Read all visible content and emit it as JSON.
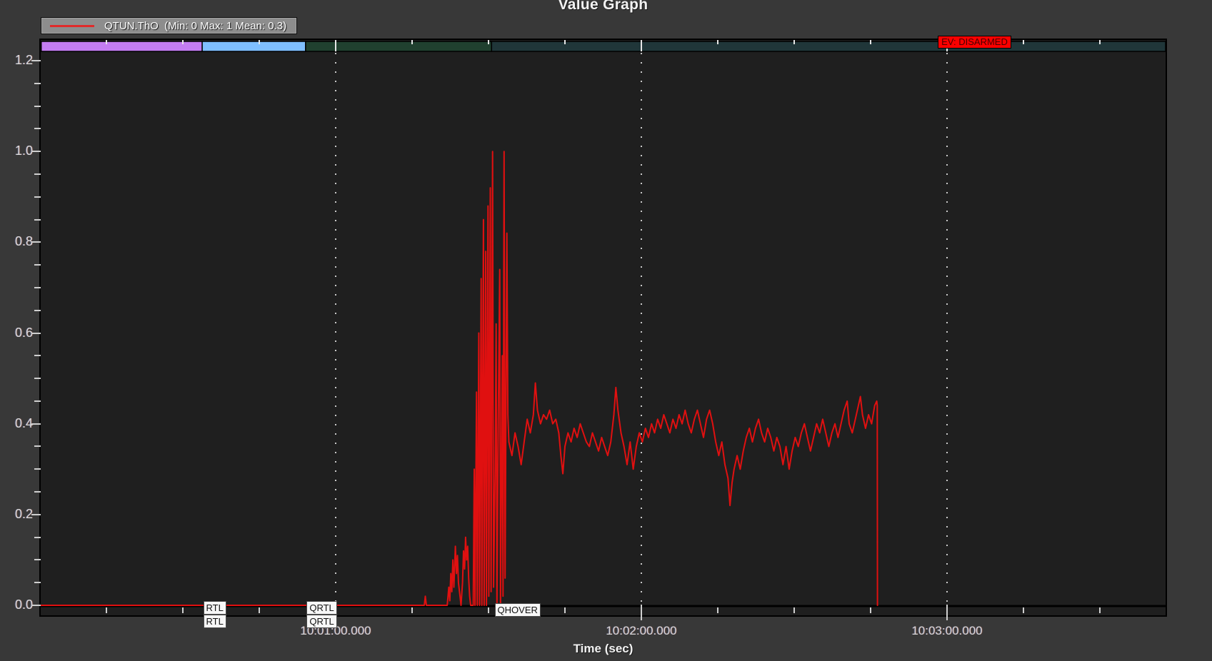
{
  "accent_colors": {
    "page_background": "#383838",
    "plot_background": "#1f1f1f",
    "trace_red": "#e01010",
    "grid_dot": "#c8c8c8",
    "tick": "#cfcfcf"
  },
  "chart_data": {
    "type": "line",
    "title": "Value Graph",
    "xlabel": "Time (sec)",
    "ylim": [
      -0.022,
      1.246
    ],
    "xlim_sec": [
      2.1,
      222.9
    ],
    "grid": "dotted vertical lines at major x ticks",
    "legend_position": "top-left",
    "yticks": {
      "major": [
        0.0,
        0.2,
        0.4,
        0.6,
        0.8,
        1.0,
        1.2
      ],
      "labels": [
        "0.0",
        "0.2",
        "0.4",
        "0.6",
        "0.8",
        "1.0",
        "1.2"
      ],
      "minor_step": 0.05
    },
    "xticks": {
      "major": [
        {
          "sec": 60,
          "label": "10:01:00.000"
        },
        {
          "sec": 120,
          "label": "10:02:00.000"
        },
        {
          "sec": 180,
          "label": "10:03:00.000"
        }
      ],
      "minor_step_sec": 15
    },
    "legend": {
      "label": "QTUN.ThO  (Min: 0 Max: 1 Mean: 0.3)",
      "color": "#e01010"
    },
    "flight_mode_spans": [
      {
        "mode": "",
        "color": "#c47df2",
        "start_sec": 2.2,
        "end_sec": 33.8
      },
      {
        "mode": "RTL",
        "color": "#7fbfff",
        "start_sec": 33.8,
        "end_sec": 54.1
      },
      {
        "mode": "QRTL",
        "color": "#20402f",
        "start_sec": 54.1,
        "end_sec": 90.6
      },
      {
        "mode": "QHOVER",
        "color": "#203639",
        "start_sec": 90.6,
        "end_sec": 222.9
      }
    ],
    "mode_change_labels": [
      {
        "label": "RTL",
        "sec": 34.0,
        "stacked": 2
      },
      {
        "label": "QRTL",
        "sec": 54.3,
        "stacked": 2
      },
      {
        "label": "QHOVER",
        "sec": 91.2,
        "stacked": 1
      }
    ],
    "event_labels": [
      {
        "label": "EV: DISARMED",
        "sec": 178.2,
        "bg": "#fb0000",
        "fg": "#4a0000"
      }
    ],
    "series": [
      {
        "name": "QTUN.ThO",
        "color": "#e01010",
        "min": 0,
        "max": 1,
        "mean": 0.3,
        "points": [
          [
            2.1,
            0
          ],
          [
            40,
            0
          ],
          [
            60,
            0
          ],
          [
            74,
            0
          ],
          [
            77.4,
            0
          ],
          [
            77.6,
            0.02
          ],
          [
            77.8,
            0
          ],
          [
            81.9,
            0
          ],
          [
            82.2,
            0.04
          ],
          [
            82.4,
            0.01
          ],
          [
            82.6,
            0.07
          ],
          [
            82.8,
            0.03
          ],
          [
            83.0,
            0.1
          ],
          [
            83.2,
            0.04
          ],
          [
            83.5,
            0.13
          ],
          [
            83.7,
            0.07
          ],
          [
            83.9,
            0.11
          ],
          [
            84.1,
            0.05
          ],
          [
            84.4,
            0.02
          ],
          [
            84.6,
            0
          ],
          [
            84.9,
            0.05
          ],
          [
            85.1,
            0.12
          ],
          [
            85.3,
            0.08
          ],
          [
            85.5,
            0.15
          ],
          [
            85.7,
            0.1
          ],
          [
            85.9,
            0.13
          ],
          [
            86.1,
            0.06
          ],
          [
            86.3,
            0.02
          ],
          [
            86.5,
            0
          ],
          [
            87.0,
            0
          ],
          [
            87.2,
            0.3
          ],
          [
            87.35,
            0
          ],
          [
            87.65,
            0.47
          ],
          [
            87.8,
            0
          ],
          [
            88.1,
            0.6
          ],
          [
            88.25,
            0
          ],
          [
            88.55,
            0.72
          ],
          [
            88.7,
            0
          ],
          [
            89.0,
            0.85
          ],
          [
            89.15,
            0
          ],
          [
            89.45,
            0.78
          ],
          [
            89.6,
            0
          ],
          [
            89.9,
            0.88
          ],
          [
            90.05,
            0.02
          ],
          [
            90.35,
            0.92
          ],
          [
            90.5,
            0.03
          ],
          [
            90.8,
            1.0
          ],
          [
            91.0,
            0.04
          ],
          [
            91.3,
            0.3
          ],
          [
            91.5,
            0.62
          ],
          [
            91.65,
            0
          ],
          [
            91.95,
            0.45
          ],
          [
            92.2,
            0.74
          ],
          [
            92.35,
            0
          ],
          [
            92.7,
            0.55
          ],
          [
            92.85,
            0.02
          ],
          [
            93.05,
            1.0
          ],
          [
            93.25,
            0.06
          ],
          [
            93.6,
            0.82
          ],
          [
            93.8,
            0.42
          ],
          [
            94.0,
            0.36
          ],
          [
            94.6,
            0.33
          ],
          [
            95.2,
            0.38
          ],
          [
            95.8,
            0.35
          ],
          [
            96.4,
            0.31
          ],
          [
            97.0,
            0.36
          ],
          [
            97.6,
            0.41
          ],
          [
            98.2,
            0.38
          ],
          [
            98.8,
            0.42
          ],
          [
            99.2,
            0.49
          ],
          [
            99.6,
            0.43
          ],
          [
            100.2,
            0.4
          ],
          [
            100.8,
            0.42
          ],
          [
            101.4,
            0.41
          ],
          [
            102.0,
            0.43
          ],
          [
            102.6,
            0.4
          ],
          [
            103.2,
            0.41
          ],
          [
            103.8,
            0.38
          ],
          [
            104.2,
            0.33
          ],
          [
            104.6,
            0.29
          ],
          [
            105.0,
            0.35
          ],
          [
            105.6,
            0.38
          ],
          [
            106.2,
            0.36
          ],
          [
            106.8,
            0.39
          ],
          [
            107.4,
            0.37
          ],
          [
            108.0,
            0.4
          ],
          [
            108.6,
            0.38
          ],
          [
            109.2,
            0.36
          ],
          [
            109.8,
            0.35
          ],
          [
            110.4,
            0.38
          ],
          [
            111.0,
            0.36
          ],
          [
            111.6,
            0.34
          ],
          [
            112.2,
            0.37
          ],
          [
            112.8,
            0.35
          ],
          [
            113.4,
            0.33
          ],
          [
            114.0,
            0.36
          ],
          [
            114.6,
            0.42
          ],
          [
            115.0,
            0.48
          ],
          [
            115.4,
            0.43
          ],
          [
            116.0,
            0.38
          ],
          [
            116.6,
            0.35
          ],
          [
            117.2,
            0.31
          ],
          [
            117.8,
            0.36
          ],
          [
            118.4,
            0.3
          ],
          [
            119.0,
            0.35
          ],
          [
            119.6,
            0.38
          ],
          [
            120.2,
            0.36
          ],
          [
            120.8,
            0.39
          ],
          [
            121.4,
            0.37
          ],
          [
            122.0,
            0.4
          ],
          [
            122.6,
            0.38
          ],
          [
            123.2,
            0.41
          ],
          [
            123.8,
            0.39
          ],
          [
            124.4,
            0.42
          ],
          [
            125.0,
            0.4
          ],
          [
            125.6,
            0.38
          ],
          [
            126.2,
            0.41
          ],
          [
            126.8,
            0.39
          ],
          [
            127.4,
            0.42
          ],
          [
            128.0,
            0.4
          ],
          [
            128.6,
            0.43
          ],
          [
            129.2,
            0.4
          ],
          [
            129.8,
            0.38
          ],
          [
            130.4,
            0.41
          ],
          [
            131.0,
            0.43
          ],
          [
            131.6,
            0.4
          ],
          [
            132.2,
            0.37
          ],
          [
            132.8,
            0.41
          ],
          [
            133.4,
            0.43
          ],
          [
            134.0,
            0.4
          ],
          [
            134.6,
            0.36
          ],
          [
            135.2,
            0.33
          ],
          [
            135.8,
            0.36
          ],
          [
            136.4,
            0.31
          ],
          [
            137.0,
            0.28
          ],
          [
            137.4,
            0.22
          ],
          [
            137.8,
            0.27
          ],
          [
            138.2,
            0.3
          ],
          [
            138.8,
            0.33
          ],
          [
            139.4,
            0.3
          ],
          [
            140.0,
            0.34
          ],
          [
            140.6,
            0.37
          ],
          [
            141.2,
            0.39
          ],
          [
            141.8,
            0.36
          ],
          [
            142.4,
            0.39
          ],
          [
            143.0,
            0.41
          ],
          [
            143.6,
            0.38
          ],
          [
            144.2,
            0.36
          ],
          [
            144.8,
            0.39
          ],
          [
            145.4,
            0.37
          ],
          [
            146.0,
            0.34
          ],
          [
            146.6,
            0.37
          ],
          [
            147.2,
            0.35
          ],
          [
            147.8,
            0.31
          ],
          [
            148.4,
            0.35
          ],
          [
            149.0,
            0.3
          ],
          [
            149.6,
            0.34
          ],
          [
            150.2,
            0.37
          ],
          [
            150.8,
            0.35
          ],
          [
            151.4,
            0.38
          ],
          [
            152.0,
            0.4
          ],
          [
            152.6,
            0.37
          ],
          [
            153.2,
            0.34
          ],
          [
            153.8,
            0.37
          ],
          [
            154.4,
            0.4
          ],
          [
            155.0,
            0.38
          ],
          [
            155.6,
            0.41
          ],
          [
            156.2,
            0.38
          ],
          [
            156.8,
            0.35
          ],
          [
            157.4,
            0.38
          ],
          [
            158.0,
            0.4
          ],
          [
            158.6,
            0.37
          ],
          [
            159.2,
            0.4
          ],
          [
            159.8,
            0.43
          ],
          [
            160.4,
            0.45
          ],
          [
            160.8,
            0.4
          ],
          [
            161.4,
            0.38
          ],
          [
            162.0,
            0.41
          ],
          [
            162.6,
            0.44
          ],
          [
            163.0,
            0.46
          ],
          [
            163.4,
            0.42
          ],
          [
            164.0,
            0.39
          ],
          [
            164.6,
            0.42
          ],
          [
            165.2,
            0.4
          ],
          [
            165.8,
            0.44
          ],
          [
            166.2,
            0.45
          ],
          [
            166.3,
            0.44
          ],
          [
            166.35,
            0
          ]
        ]
      }
    ]
  }
}
